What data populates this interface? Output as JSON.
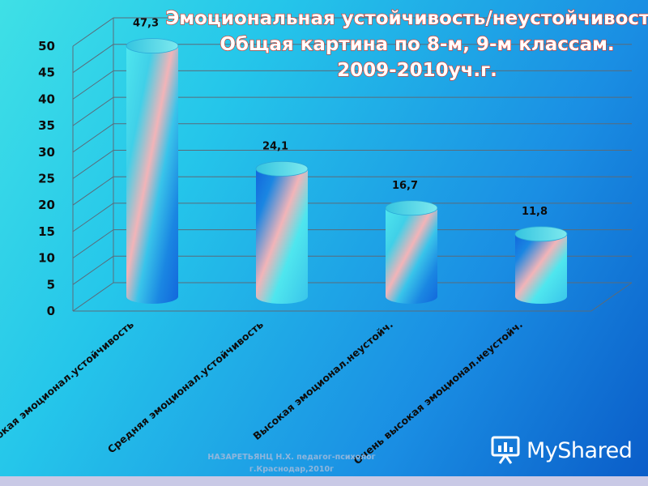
{
  "chart_data": {
    "type": "bar",
    "title_lines": [
      "Эмоциональная устойчивость/неустойчивость.",
      "Общая картина по 8-м, 9-м классам.",
      "2009-2010уч.г."
    ],
    "categories": [
      "Высокая эмоционал.устойчивость",
      "Средняя эмоционал.устойчивость",
      "Высокая эмоционал.неустойч.",
      "Очень высокая эмоционал.неустойч."
    ],
    "values": [
      47.3,
      24.1,
      16.7,
      11.8
    ],
    "data_labels": [
      "47,3",
      "24,1",
      "16,7",
      "11,8"
    ],
    "y_ticks": [
      "0",
      "5",
      "10",
      "15",
      "20",
      "25",
      "30",
      "35",
      "40",
      "45",
      "50"
    ],
    "ylim": [
      0,
      50
    ],
    "grid": true,
    "bar_style": "3d-cylinder"
  },
  "credit": {
    "line1": "НАЗАРЕТЬЯНЦ Н.Х. педагог-психолог",
    "line2": "г.Краснодар,2010г"
  },
  "logo": {
    "text": "MyShared",
    "icon": "presentation-board-icon"
  },
  "colors": {
    "title_fill": "#ffffff",
    "title_stroke": "#e8321e",
    "cyl_light": "#4fe6ee",
    "cyl_pink": "#f2b4b8",
    "cyl_blue": "#1266dc"
  }
}
